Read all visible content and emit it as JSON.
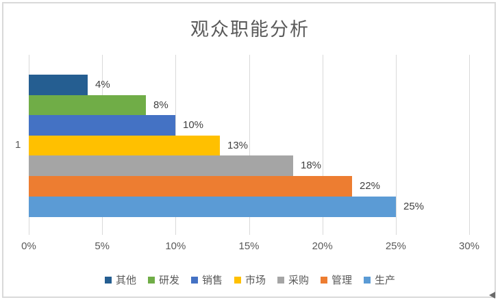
{
  "title": "观众职能分析",
  "chart_data": {
    "type": "bar",
    "orientation": "horizontal",
    "categories": [
      "1"
    ],
    "series": [
      {
        "name": "其他",
        "value": 4,
        "label": "4%",
        "color": "#255E91"
      },
      {
        "name": "研发",
        "value": 8,
        "label": "8%",
        "color": "#70AD47"
      },
      {
        "name": "销售",
        "value": 10,
        "label": "10%",
        "color": "#4472C4"
      },
      {
        "name": "市场",
        "value": 13,
        "label": "13%",
        "color": "#FFC000"
      },
      {
        "name": "采购",
        "value": 18,
        "label": "18%",
        "color": "#A5A5A5"
      },
      {
        "name": "管理",
        "value": 22,
        "label": "22%",
        "color": "#ED7D31"
      },
      {
        "name": "生产",
        "value": 25,
        "label": "25%",
        "color": "#5B9BD5"
      }
    ],
    "x_ticks": [
      {
        "value": 0,
        "label": "0%"
      },
      {
        "value": 5,
        "label": "5%"
      },
      {
        "value": 10,
        "label": "10%"
      },
      {
        "value": 15,
        "label": "15%"
      },
      {
        "value": 20,
        "label": "20%"
      },
      {
        "value": 25,
        "label": "25%"
      },
      {
        "value": 30,
        "label": "30%"
      }
    ],
    "xlim": [
      0,
      30
    ],
    "grid": true,
    "legend_position": "bottom",
    "colors": {
      "gridline": "#d9d9d9",
      "border": "#d9d9d9",
      "axis_text": "#595959",
      "data_label_text": "#404040",
      "title_text": "#595959",
      "background": "#ffffff"
    }
  }
}
